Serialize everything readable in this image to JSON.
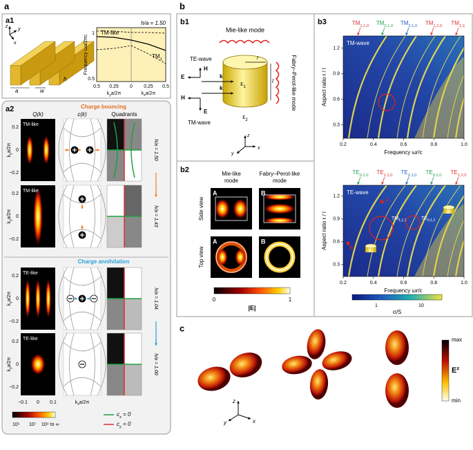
{
  "figure": {
    "a": {
      "label": "a",
      "a1": {
        "label": "a1",
        "axes": [
          "z",
          "y",
          "x"
        ],
        "dims": [
          "a",
          "w",
          "h"
        ],
        "ratio": "h/a = 1.50",
        "mode": "TM-like",
        "band": [
          "TM",
          {
            "sub": "1"
          }
        ],
        "ylabel": "Frequency ωa/2πc",
        "yticks": [
          "1",
          "0.5"
        ],
        "xticks": [
          "0.5",
          "0.25",
          "0",
          "0.25",
          "0.5"
        ],
        "xlabels": [
          [
            "k",
            {
              "sub": "y"
            },
            "a/2π"
          ],
          [
            "k",
            {
              "sub": "x"
            },
            "a/2π"
          ]
        ]
      },
      "a2": {
        "label": "a2",
        "headers": [
          "Q(k)",
          "c(k)",
          "Quadrants"
        ],
        "sections": [
          "Charge bouncing",
          "Charge annihilation"
        ],
        "rows": [
          {
            "mode": "TM-like",
            "ratio": "h/a = 1.50"
          },
          {
            "mode": "TM-like",
            "ratio": "h/a = 1.43"
          },
          {
            "mode": "TE-like",
            "ratio": "h/a = 1.04"
          },
          {
            "mode": "TE-like",
            "ratio": "h/a = 1.00"
          }
        ],
        "yticks": [
          "0.2",
          "0",
          "−0.2"
        ],
        "ylabel": [
          "k",
          {
            "sub": "y"
          },
          "a/2π"
        ],
        "xticks": [
          "−0.1",
          "0",
          "0.1"
        ],
        "xlabel": [
          "k",
          {
            "sub": "x"
          },
          "a/2π"
        ],
        "colorbar": [
          "10⁵",
          "10⁷",
          "10⁹ to ∞"
        ],
        "legend": [
          [
            "c",
            {
              "sub": "x"
            },
            " = 0"
          ],
          [
            "c",
            {
              "sub": "y"
            },
            " = 0"
          ]
        ]
      }
    },
    "b": {
      "label": "b",
      "b1": {
        "label": "b1",
        "mie": "Mie-like mode",
        "fp": "Fabry–Perot-like mode",
        "te": "TE-wave",
        "tm": "TM-wave",
        "fields": [
          "H",
          "E",
          "E",
          "H"
        ],
        "k": [
          "k",
          "k"
        ],
        "r": "r",
        "l": "l",
        "eps1": [
          "ε",
          {
            "sub": "1"
          }
        ],
        "eps2": [
          "ε",
          {
            "sub": "2"
          }
        ],
        "axes": [
          "z",
          "y",
          "x"
        ]
      },
      "b2": {
        "label": "b2",
        "columns": [
          [
            "Mie-like",
            "mode"
          ],
          [
            "Fabry–Perot-like",
            "mode"
          ]
        ],
        "rows": [
          "Side view",
          "Top view"
        ],
        "tags": [
          "A",
          "B",
          "A",
          "B"
        ],
        "colorbar": {
          "ticks": [
            "0",
            "1"
          ],
          "label": "|E|"
        }
      },
      "b3": {
        "label": "b3",
        "tm": {
          "title": "TM-wave",
          "modes": [
            [
              "TM",
              {
                "sub": "1,1,0"
              }
            ],
            [
              "TM",
              {
                "sub": "0,1,0"
              }
            ],
            [
              "TM",
              {
                "sub": "2,1,0"
              }
            ],
            [
              "TM",
              {
                "sub": "1,2,0"
              }
            ],
            [
              "TM",
              {
                "sub": "1,2,"
              }
            ]
          ],
          "ylabel": "Aspect ratio r / l",
          "yticks": [
            "1.2",
            "0.9",
            "0.6",
            "0.3"
          ],
          "xticks": [
            "0.2",
            "0.4",
            "0.6",
            "0.8",
            "1.0"
          ],
          "xlabel": "Frequency ωr/c"
        },
        "te": {
          "title": "TE-wave",
          "modes": [
            [
              "TE",
              {
                "sub": "0,1,0"
              }
            ],
            [
              "TE",
              {
                "sub": "1,1,0"
              }
            ],
            [
              "TE",
              {
                "sub": "2,1,0"
              }
            ],
            [
              "TE",
              {
                "sub": "0,2,0"
              }
            ],
            [
              "TE",
              {
                "sub": "1,2,0"
              }
            ]
          ],
          "annotations": [
            [
              "TM",
              {
                "sub": "1,1,1"
              }
            ],
            [
              "TE",
              {
                "sub": "0,1,2"
              }
            ]
          ],
          "points": [
            "A",
            "B"
          ],
          "ylabel": "Aspect ratio r / l",
          "yticks": [
            "1.2",
            "0.9",
            "0.6",
            "0.3"
          ],
          "xticks": [
            "0.2",
            "0.4",
            "0.6",
            "0.8",
            "1.0"
          ],
          "xlabel": "Frequency ωr/c"
        },
        "colorbar": {
          "ticks": [
            "1",
            "10"
          ],
          "label": "σ/S"
        }
      }
    },
    "c": {
      "label": "c",
      "axes": [
        "z",
        "y",
        "x"
      ],
      "colorbar": {
        "max": "max",
        "label": "E²",
        "min": "min"
      }
    }
  }
}
